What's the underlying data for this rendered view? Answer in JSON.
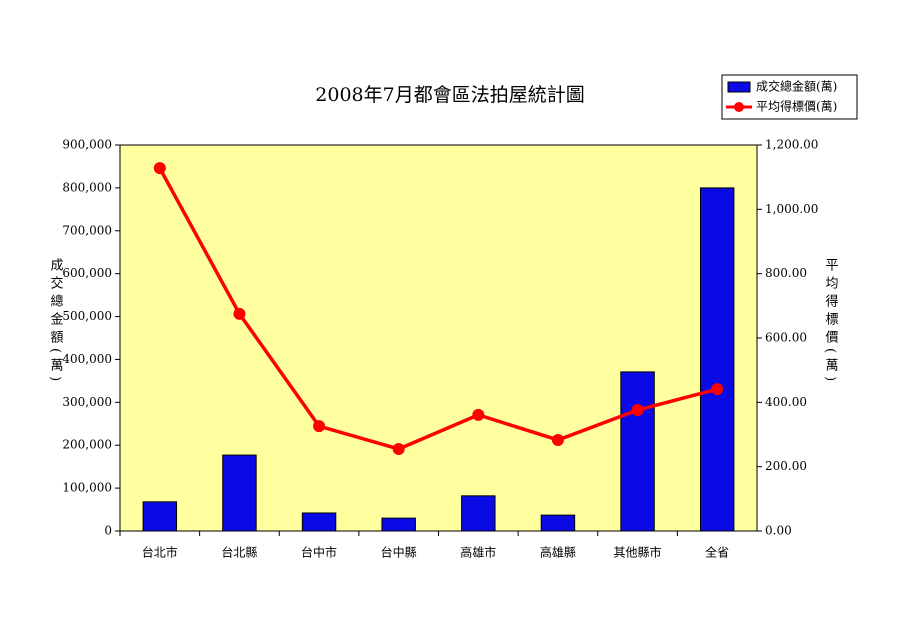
{
  "chart_data": {
    "type": "combo",
    "title": "2008年7月都會區法拍屋統計圖",
    "categories": [
      "台北市",
      "台北縣",
      "台中市",
      "台中縣",
      "高雄市",
      "高雄縣",
      "其他縣市",
      "全省"
    ],
    "series": [
      {
        "name": "成交總金額(萬)",
        "type": "bar",
        "color": "#0a0ae6",
        "values": [
          68000,
          177000,
          42000,
          30000,
          82000,
          37000,
          371000,
          800000
        ]
      },
      {
        "name": "平均得標價(萬)",
        "type": "line",
        "axis": "y2",
        "color": "#ff0000",
        "values": [
          1128,
          675,
          326,
          255,
          361,
          283,
          376,
          441
        ]
      }
    ],
    "y_label": "成交總金額(萬)",
    "y2_label": "平均得標價(萬)",
    "ylim": [
      0,
      900000
    ],
    "yticks": [
      0,
      {
        "value": 100000,
        "label": "100,000"
      },
      {
        "value": 200000,
        "label": "200,000"
      },
      {
        "value": 300000,
        "label": "300,000"
      },
      {
        "value": 400000,
        "label": "400,000"
      },
      {
        "value": 500000,
        "label": "500,000"
      },
      {
        "value": 600000,
        "label": "600,000"
      },
      {
        "value": 700000,
        "label": "700,000"
      },
      {
        "value": 800000,
        "label": "800,000"
      },
      {
        "value": 900000,
        "label": "900,000"
      }
    ],
    "y2lim": [
      0,
      1200
    ],
    "y2ticks": [
      {
        "value": 0,
        "label": "0.00"
      },
      {
        "value": 200,
        "label": "200.00"
      },
      {
        "value": 400,
        "label": "400.00"
      },
      {
        "value": 600,
        "label": "600.00"
      },
      {
        "value": 800,
        "label": "800.00"
      },
      {
        "value": 1000,
        "label": "1,000.00"
      },
      {
        "value": 1200,
        "label": "1,200.00"
      }
    ],
    "plot_background": "#ffffa0"
  }
}
